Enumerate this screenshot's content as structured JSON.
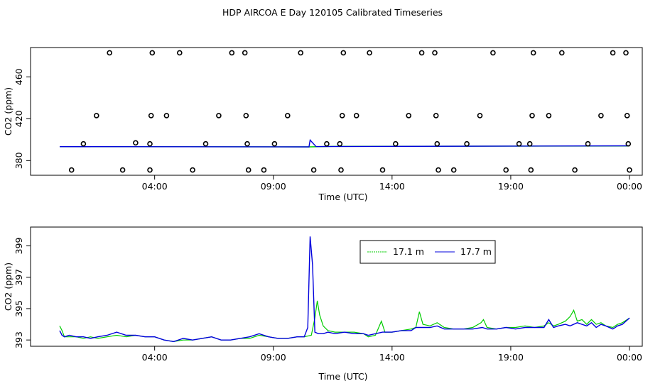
{
  "page_title": "HDP AIRCOA E  Day 120105  Calibrated Timeseries",
  "chart_data": [
    {
      "type": "scatter",
      "xlabel": "Time (UTC)",
      "ylabel": "CO2 (ppm)",
      "xlim": [
        0,
        24
      ],
      "ylim": [
        366,
        488
      ],
      "x_ticks": [
        {
          "x": 4,
          "label": "04:00"
        },
        {
          "x": 9,
          "label": "09:00"
        },
        {
          "x": 14,
          "label": "14:00"
        },
        {
          "x": 19,
          "label": "19:00"
        },
        {
          "x": 24,
          "label": "00:00"
        }
      ],
      "y_ticks": [
        {
          "y": 380,
          "label": "380"
        },
        {
          "y": 420,
          "label": "420"
        },
        {
          "y": 460,
          "label": "460"
        }
      ],
      "calibration_points": [
        [
          0.5,
          371
        ],
        [
          1.0,
          396
        ],
        [
          1.55,
          423
        ],
        [
          2.1,
          483
        ],
        [
          2.65,
          371
        ],
        [
          3.2,
          397
        ],
        [
          3.8,
          396
        ],
        [
          3.8,
          371
        ],
        [
          3.85,
          423
        ],
        [
          3.9,
          483
        ],
        [
          4.5,
          423
        ],
        [
          5.05,
          483
        ],
        [
          5.6,
          371
        ],
        [
          6.15,
          396
        ],
        [
          6.7,
          423
        ],
        [
          7.25,
          483
        ],
        [
          7.8,
          483
        ],
        [
          7.85,
          423
        ],
        [
          7.9,
          396
        ],
        [
          7.95,
          371
        ],
        [
          8.6,
          371
        ],
        [
          9.05,
          396
        ],
        [
          9.6,
          423
        ],
        [
          10.15,
          483
        ],
        [
          10.7,
          371
        ],
        [
          11.25,
          396
        ],
        [
          11.8,
          396
        ],
        [
          11.85,
          371
        ],
        [
          11.9,
          423
        ],
        [
          11.95,
          483
        ],
        [
          12.5,
          423
        ],
        [
          13.05,
          483
        ],
        [
          13.6,
          371
        ],
        [
          14.15,
          396
        ],
        [
          14.7,
          423
        ],
        [
          15.25,
          483
        ],
        [
          15.8,
          483
        ],
        [
          15.85,
          423
        ],
        [
          15.9,
          396
        ],
        [
          15.95,
          371
        ],
        [
          16.6,
          371
        ],
        [
          17.15,
          396
        ],
        [
          17.7,
          423
        ],
        [
          18.25,
          483
        ],
        [
          18.8,
          371
        ],
        [
          19.35,
          396
        ],
        [
          19.8,
          396
        ],
        [
          19.85,
          371
        ],
        [
          19.9,
          423
        ],
        [
          19.95,
          483
        ],
        [
          20.6,
          423
        ],
        [
          21.15,
          483
        ],
        [
          21.7,
          371
        ],
        [
          22.25,
          396
        ],
        [
          22.8,
          423
        ],
        [
          23.3,
          483
        ],
        [
          23.85,
          483
        ],
        [
          23.9,
          423
        ],
        [
          23.95,
          396
        ],
        [
          24.0,
          371
        ]
      ],
      "series": [
        {
          "color": "#00cc00",
          "y": [
            [
              0,
              393.3
            ],
            [
              10.5,
              393.1
            ],
            [
              11.5,
              393.6
            ],
            [
              24,
              393.9
            ]
          ]
        },
        {
          "color": "#0000dd",
          "y": [
            [
              0,
              393.3
            ],
            [
              10.5,
              393.1
            ],
            [
              10.55,
              399.6
            ],
            [
              10.8,
              393.4
            ],
            [
              24,
              394.1
            ]
          ]
        }
      ]
    },
    {
      "type": "line",
      "xlabel": "Time (UTC)",
      "ylabel": "CO2 (ppm)",
      "xlim": [
        0,
        24
      ],
      "ylim": [
        392.6,
        400.2
      ],
      "x_ticks": [
        {
          "x": 4,
          "label": "04:00"
        },
        {
          "x": 9,
          "label": "09:00"
        },
        {
          "x": 14,
          "label": "14:00"
        },
        {
          "x": 19,
          "label": "19:00"
        },
        {
          "x": 24,
          "label": "00:00"
        }
      ],
      "y_ticks": [
        {
          "y": 393,
          "label": "393"
        },
        {
          "y": 395,
          "label": "395"
        },
        {
          "y": 397,
          "label": "397"
        },
        {
          "y": 399,
          "label": "399"
        }
      ],
      "legend_position": "top-right",
      "series": [
        {
          "name": "17.1 m",
          "color": "#00cc00",
          "points": [
            [
              0.0,
              393.9
            ],
            [
              0.1,
              393.6
            ],
            [
              0.2,
              393.2
            ],
            [
              0.4,
              393.2
            ],
            [
              0.7,
              393.2
            ],
            [
              1.0,
              393.1
            ],
            [
              1.3,
              393.2
            ],
            [
              1.6,
              393.1
            ],
            [
              2.0,
              393.2
            ],
            [
              2.4,
              393.3
            ],
            [
              2.8,
              393.2
            ],
            [
              3.2,
              393.3
            ],
            [
              3.6,
              393.2
            ],
            [
              4.0,
              393.2
            ],
            [
              4.4,
              393.0
            ],
            [
              4.8,
              392.9
            ],
            [
              5.2,
              393.0
            ],
            [
              5.6,
              393.0
            ],
            [
              6.0,
              393.1
            ],
            [
              6.4,
              393.2
            ],
            [
              6.8,
              393.0
            ],
            [
              7.2,
              393.0
            ],
            [
              7.6,
              393.1
            ],
            [
              8.0,
              393.1
            ],
            [
              8.4,
              393.3
            ],
            [
              8.8,
              393.2
            ],
            [
              9.2,
              393.1
            ],
            [
              9.6,
              393.1
            ],
            [
              10.0,
              393.2
            ],
            [
              10.3,
              393.2
            ],
            [
              10.6,
              393.3
            ],
            [
              10.75,
              394.4
            ],
            [
              10.85,
              395.5
            ],
            [
              10.95,
              394.6
            ],
            [
              11.1,
              393.9
            ],
            [
              11.3,
              393.6
            ],
            [
              11.6,
              393.5
            ],
            [
              12.0,
              393.5
            ],
            [
              12.4,
              393.5
            ],
            [
              12.8,
              393.4
            ],
            [
              13.0,
              393.2
            ],
            [
              13.3,
              393.3
            ],
            [
              13.55,
              394.2
            ],
            [
              13.7,
              393.5
            ],
            [
              14.0,
              393.5
            ],
            [
              14.4,
              393.6
            ],
            [
              14.8,
              393.7
            ],
            [
              15.0,
              393.8
            ],
            [
              15.15,
              394.8
            ],
            [
              15.3,
              394.0
            ],
            [
              15.6,
              393.9
            ],
            [
              15.9,
              394.1
            ],
            [
              16.2,
              393.8
            ],
            [
              16.6,
              393.7
            ],
            [
              17.0,
              393.7
            ],
            [
              17.4,
              393.8
            ],
            [
              17.75,
              394.1
            ],
            [
              17.85,
              394.3
            ],
            [
              18.0,
              393.8
            ],
            [
              18.4,
              393.7
            ],
            [
              18.8,
              393.8
            ],
            [
              19.2,
              393.8
            ],
            [
              19.6,
              393.9
            ],
            [
              20.0,
              393.8
            ],
            [
              20.4,
              393.9
            ],
            [
              20.6,
              394.1
            ],
            [
              20.8,
              393.9
            ],
            [
              21.0,
              394.0
            ],
            [
              21.3,
              394.2
            ],
            [
              21.5,
              394.5
            ],
            [
              21.65,
              394.9
            ],
            [
              21.8,
              394.2
            ],
            [
              22.0,
              394.3
            ],
            [
              22.2,
              394.0
            ],
            [
              22.4,
              394.3
            ],
            [
              22.6,
              394.0
            ],
            [
              22.8,
              394.1
            ],
            [
              23.0,
              393.9
            ],
            [
              23.3,
              393.8
            ],
            [
              23.5,
              394.0
            ],
            [
              23.7,
              394.1
            ],
            [
              24.0,
              394.4
            ]
          ]
        },
        {
          "name": "17.7 m",
          "color": "#0000dd",
          "points": [
            [
              0.0,
              393.6
            ],
            [
              0.1,
              393.3
            ],
            [
              0.2,
              393.2
            ],
            [
              0.4,
              393.3
            ],
            [
              0.7,
              393.2
            ],
            [
              1.0,
              393.2
            ],
            [
              1.3,
              393.1
            ],
            [
              1.6,
              393.2
            ],
            [
              2.0,
              393.3
            ],
            [
              2.4,
              393.5
            ],
            [
              2.8,
              393.3
            ],
            [
              3.2,
              393.3
            ],
            [
              3.6,
              393.2
            ],
            [
              4.0,
              393.2
            ],
            [
              4.4,
              393.0
            ],
            [
              4.8,
              392.9
            ],
            [
              5.2,
              393.1
            ],
            [
              5.6,
              393.0
            ],
            [
              6.0,
              393.1
            ],
            [
              6.4,
              393.2
            ],
            [
              6.8,
              393.0
            ],
            [
              7.2,
              393.0
            ],
            [
              7.6,
              393.1
            ],
            [
              8.0,
              393.2
            ],
            [
              8.4,
              393.4
            ],
            [
              8.8,
              393.2
            ],
            [
              9.2,
              393.1
            ],
            [
              9.6,
              393.1
            ],
            [
              10.0,
              393.2
            ],
            [
              10.3,
              393.2
            ],
            [
              10.45,
              393.8
            ],
            [
              10.55,
              399.6
            ],
            [
              10.65,
              397.8
            ],
            [
              10.75,
              393.5
            ],
            [
              10.9,
              393.4
            ],
            [
              11.1,
              393.4
            ],
            [
              11.3,
              393.5
            ],
            [
              11.6,
              393.4
            ],
            [
              12.0,
              393.5
            ],
            [
              12.4,
              393.4
            ],
            [
              12.8,
              393.4
            ],
            [
              13.0,
              393.3
            ],
            [
              13.3,
              393.4
            ],
            [
              13.6,
              393.5
            ],
            [
              14.0,
              393.5
            ],
            [
              14.4,
              393.6
            ],
            [
              14.8,
              393.6
            ],
            [
              15.0,
              393.8
            ],
            [
              15.3,
              393.8
            ],
            [
              15.6,
              393.8
            ],
            [
              15.9,
              393.9
            ],
            [
              16.2,
              393.7
            ],
            [
              16.6,
              393.7
            ],
            [
              17.0,
              393.7
            ],
            [
              17.4,
              393.7
            ],
            [
              17.8,
              393.8
            ],
            [
              18.0,
              393.7
            ],
            [
              18.4,
              393.7
            ],
            [
              18.8,
              393.8
            ],
            [
              19.2,
              393.7
            ],
            [
              19.6,
              393.8
            ],
            [
              20.0,
              393.8
            ],
            [
              20.4,
              393.8
            ],
            [
              20.6,
              394.3
            ],
            [
              20.8,
              393.8
            ],
            [
              21.0,
              393.9
            ],
            [
              21.3,
              394.0
            ],
            [
              21.5,
              393.9
            ],
            [
              21.8,
              394.1
            ],
            [
              22.0,
              394.0
            ],
            [
              22.2,
              393.9
            ],
            [
              22.4,
              394.1
            ],
            [
              22.6,
              393.8
            ],
            [
              22.8,
              394.0
            ],
            [
              23.0,
              393.9
            ],
            [
              23.3,
              393.7
            ],
            [
              23.5,
              393.9
            ],
            [
              23.7,
              394.0
            ],
            [
              24.0,
              394.4
            ]
          ]
        }
      ]
    }
  ]
}
